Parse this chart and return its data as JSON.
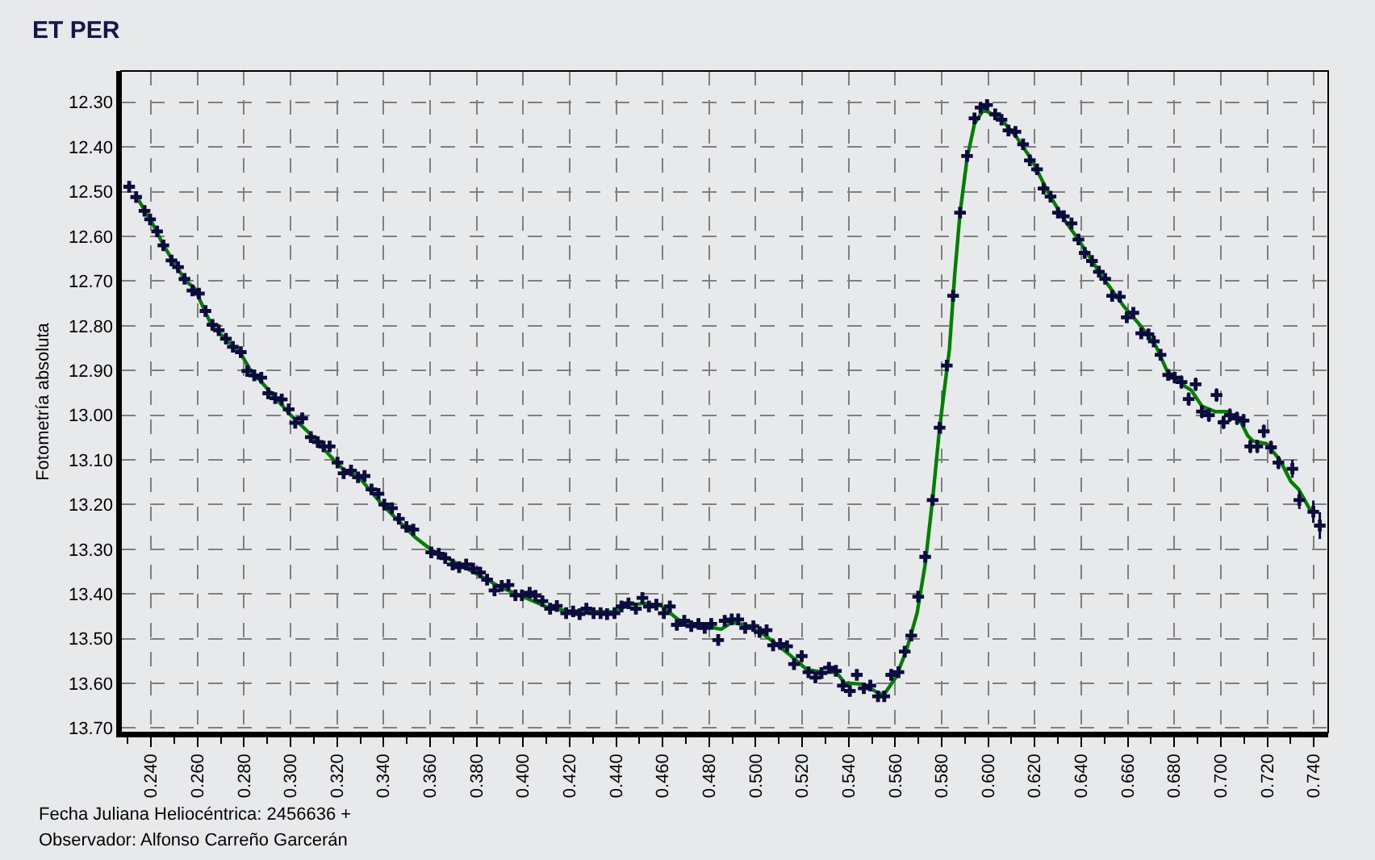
{
  "chart_data": {
    "type": "scatter",
    "title": "ET PER",
    "xlabel": "Fecha Juliana Heliocéntrica: 2456636 +",
    "ylabel": "Fotometría absoluta",
    "annotations": [
      "Observador: Alfonso Carreño Garcerán"
    ],
    "xlim": [
      0.2271,
      0.7462
    ],
    "ylim": [
      13.71,
      12.23
    ],
    "xticks": [
      {
        "value": 0.23,
        "label": null
      },
      {
        "value": 0.24,
        "label": "0.240"
      },
      {
        "value": 0.25,
        "label": null
      },
      {
        "value": 0.26,
        "label": "0.260"
      },
      {
        "value": 0.27,
        "label": null
      },
      {
        "value": 0.28,
        "label": "0.280"
      },
      {
        "value": 0.29,
        "label": null
      },
      {
        "value": 0.3,
        "label": "0.300"
      },
      {
        "value": 0.31,
        "label": null
      },
      {
        "value": 0.32,
        "label": "0.320"
      },
      {
        "value": 0.33,
        "label": null
      },
      {
        "value": 0.34,
        "label": "0.340"
      },
      {
        "value": 0.35,
        "label": null
      },
      {
        "value": 0.36,
        "label": "0.360"
      },
      {
        "value": 0.37,
        "label": null
      },
      {
        "value": 0.38,
        "label": "0.380"
      },
      {
        "value": 0.39,
        "label": null
      },
      {
        "value": 0.4,
        "label": "0.400"
      },
      {
        "value": 0.41,
        "label": null
      },
      {
        "value": 0.42,
        "label": "0.420"
      },
      {
        "value": 0.43,
        "label": null
      },
      {
        "value": 0.44,
        "label": "0.440"
      },
      {
        "value": 0.45,
        "label": null
      },
      {
        "value": 0.46,
        "label": "0.460"
      },
      {
        "value": 0.47,
        "label": null
      },
      {
        "value": 0.48,
        "label": "0.480"
      },
      {
        "value": 0.49,
        "label": null
      },
      {
        "value": 0.5,
        "label": "0.500"
      },
      {
        "value": 0.51,
        "label": null
      },
      {
        "value": 0.52,
        "label": "0.520"
      },
      {
        "value": 0.53,
        "label": null
      },
      {
        "value": 0.54,
        "label": "0.540"
      },
      {
        "value": 0.55,
        "label": null
      },
      {
        "value": 0.56,
        "label": "0.560"
      },
      {
        "value": 0.57,
        "label": null
      },
      {
        "value": 0.58,
        "label": "0.580"
      },
      {
        "value": 0.59,
        "label": null
      },
      {
        "value": 0.6,
        "label": "0.600"
      },
      {
        "value": 0.61,
        "label": null
      },
      {
        "value": 0.62,
        "label": "0.620"
      },
      {
        "value": 0.63,
        "label": null
      },
      {
        "value": 0.64,
        "label": "0.640"
      },
      {
        "value": 0.65,
        "label": null
      },
      {
        "value": 0.66,
        "label": "0.660"
      },
      {
        "value": 0.67,
        "label": null
      },
      {
        "value": 0.68,
        "label": "0.680"
      },
      {
        "value": 0.69,
        "label": null
      },
      {
        "value": 0.7,
        "label": "0.700"
      },
      {
        "value": 0.71,
        "label": null
      },
      {
        "value": 0.72,
        "label": "0.720"
      },
      {
        "value": 0.73,
        "label": null
      },
      {
        "value": 0.74,
        "label": "0.740"
      }
    ],
    "yticks": [
      {
        "value": 12.3,
        "label": "12.30"
      },
      {
        "value": 12.4,
        "label": "12.40"
      },
      {
        "value": 12.5,
        "label": "12.50"
      },
      {
        "value": 12.6,
        "label": "12.60"
      },
      {
        "value": 12.7,
        "label": "12.70"
      },
      {
        "value": 12.8,
        "label": "12.80"
      },
      {
        "value": 12.9,
        "label": "12.90"
      },
      {
        "value": 13.0,
        "label": "13.00"
      },
      {
        "value": 13.1,
        "label": "13.10"
      },
      {
        "value": 13.2,
        "label": "13.20"
      },
      {
        "value": 13.3,
        "label": "13.30"
      },
      {
        "value": 13.4,
        "label": "13.40"
      },
      {
        "value": 13.5,
        "label": "13.50"
      },
      {
        "value": 13.6,
        "label": "13.60"
      },
      {
        "value": 13.7,
        "label": "13.70"
      }
    ],
    "grid": true,
    "series": [
      {
        "type": "line",
        "color": "#008000",
        "x": [
          0.2343,
          0.24,
          0.245,
          0.25,
          0.255,
          0.2586,
          0.2661,
          0.2786,
          0.2828,
          0.2863,
          0.3001,
          0.308,
          0.3186,
          0.3232,
          0.329,
          0.3394,
          0.3533,
          0.3602,
          0.3833,
          0.3903,
          0.3972,
          0.4111,
          0.4203,
          0.4388,
          0.4458,
          0.4527,
          0.4596,
          0.4666,
          0.4735,
          0.4781,
          0.4851,
          0.4897,
          0.4955,
          0.5035,
          0.5082,
          0.5139,
          0.522,
          0.5289,
          0.5347,
          0.5382,
          0.5463,
          0.5532,
          0.5555,
          0.5602,
          0.5648,
          0.5694,
          0.5729,
          0.5763,
          0.5791,
          0.5833,
          0.5856,
          0.5879,
          0.5909,
          0.5941,
          0.5978,
          0.6002,
          0.6053,
          0.6122,
          0.6191,
          0.6261,
          0.633,
          0.6388,
          0.6491,
          0.6584,
          0.6654,
          0.6723,
          0.6769,
          0.685,
          0.6873,
          0.6919,
          0.6977,
          0.7023,
          0.7081,
          0.7116,
          0.7139,
          0.7197,
          0.7254,
          0.7301,
          0.7335,
          0.7389
        ],
        "values": [
          12.516,
          12.565,
          12.616,
          12.66,
          12.7,
          12.715,
          12.8,
          12.862,
          12.9,
          12.919,
          13.0,
          13.04,
          13.1,
          13.124,
          13.136,
          13.2,
          13.272,
          13.3,
          13.364,
          13.385,
          13.4,
          13.431,
          13.439,
          13.44,
          13.424,
          13.421,
          13.427,
          13.457,
          13.472,
          13.472,
          13.479,
          13.464,
          13.469,
          13.491,
          13.509,
          13.533,
          13.569,
          13.575,
          13.575,
          13.599,
          13.602,
          13.623,
          13.623,
          13.587,
          13.527,
          13.443,
          13.334,
          13.178,
          13.028,
          12.853,
          12.685,
          12.547,
          12.426,
          12.348,
          12.318,
          12.322,
          12.336,
          12.378,
          12.432,
          12.505,
          12.565,
          12.607,
          12.691,
          12.757,
          12.799,
          12.847,
          12.901,
          12.937,
          12.944,
          12.98,
          12.992,
          12.992,
          13.01,
          13.046,
          13.058,
          13.064,
          13.1,
          13.148,
          13.166,
          13.216
        ]
      },
      {
        "color": "#0b0b40",
        "marker": "cross",
        "x": [
          0.2306,
          0.2336,
          0.2372,
          0.2396,
          0.2426,
          0.2453,
          0.2488,
          0.2516,
          0.2544,
          0.2578,
          0.2606,
          0.2634,
          0.2664,
          0.2691,
          0.2722,
          0.2752,
          0.2786,
          0.2814,
          0.2844,
          0.2874,
          0.2904,
          0.2934,
          0.2962,
          0.2992,
          0.302,
          0.305,
          0.3087,
          0.3117,
          0.3142,
          0.3168,
          0.3202,
          0.3228,
          0.326,
          0.329,
          0.3318,
          0.3348,
          0.3378,
          0.3403,
          0.3436,
          0.3466,
          0.3498,
          0.3528,
          0.3605,
          0.3637,
          0.3665,
          0.3697,
          0.3725,
          0.3755,
          0.3785,
          0.3815,
          0.3845,
          0.3877,
          0.3908,
          0.3937,
          0.3967,
          0.3995,
          0.4028,
          0.4053,
          0.4083,
          0.4116,
          0.4145,
          0.4185,
          0.4215,
          0.4243,
          0.4272,
          0.4303,
          0.4333,
          0.4361,
          0.4393,
          0.4423,
          0.4453,
          0.4485,
          0.4513,
          0.4541,
          0.4573,
          0.4605,
          0.4631,
          0.4661,
          0.4693,
          0.4723,
          0.4754,
          0.4781,
          0.4809,
          0.4839,
          0.4867,
          0.4897,
          0.4925,
          0.4955,
          0.499,
          0.5017,
          0.5047,
          0.5075,
          0.5105,
          0.5135,
          0.5165,
          0.5198,
          0.5227,
          0.5257,
          0.5283,
          0.5315,
          0.5345,
          0.5375,
          0.5405,
          0.5435,
          0.5465,
          0.5493,
          0.5526,
          0.5553,
          0.5583,
          0.5614,
          0.5641,
          0.5669,
          0.5699,
          0.5729,
          0.5761,
          0.5791,
          0.5822,
          0.5849,
          0.5879,
          0.5909,
          0.5941,
          0.5967,
          0.5995,
          0.603,
          0.6057,
          0.6087,
          0.6117,
          0.615,
          0.6179,
          0.621,
          0.6238,
          0.6268,
          0.63,
          0.6325,
          0.6358,
          0.6388,
          0.6415,
          0.6446,
          0.6476,
          0.6503,
          0.6533,
          0.6566,
          0.6596,
          0.6624,
          0.6658,
          0.6689,
          0.6712,
          0.6741,
          0.6774,
          0.6802,
          0.6831,
          0.6862,
          0.6892,
          0.6919,
          0.6949,
          0.6982,
          0.7012,
          0.7039,
          0.707,
          0.7098,
          0.7127,
          0.7157,
          0.7185,
          0.7216,
          0.7248,
          0.7308,
          0.7338,
          0.7398,
          0.7426
        ],
        "values": [
          12.489,
          12.512,
          12.543,
          12.562,
          12.589,
          12.62,
          12.654,
          12.669,
          12.695,
          12.721,
          12.728,
          12.767,
          12.798,
          12.81,
          12.829,
          12.847,
          12.859,
          12.901,
          12.911,
          12.916,
          12.951,
          12.962,
          12.965,
          12.987,
          13.017,
          13.007,
          13.049,
          13.06,
          13.07,
          13.07,
          13.106,
          13.13,
          13.124,
          13.139,
          13.136,
          13.166,
          13.176,
          13.2,
          13.208,
          13.232,
          13.25,
          13.256,
          13.307,
          13.31,
          13.32,
          13.334,
          13.34,
          13.334,
          13.343,
          13.352,
          13.368,
          13.392,
          13.382,
          13.38,
          13.403,
          13.403,
          13.397,
          13.404,
          13.416,
          13.433,
          13.427,
          13.443,
          13.439,
          13.445,
          13.433,
          13.443,
          13.443,
          13.445,
          13.443,
          13.428,
          13.421,
          13.433,
          13.409,
          13.428,
          13.424,
          13.443,
          13.428,
          13.469,
          13.46,
          13.472,
          13.467,
          13.476,
          13.467,
          13.503,
          13.46,
          13.457,
          13.457,
          13.476,
          13.472,
          13.485,
          13.481,
          13.515,
          13.512,
          13.517,
          13.557,
          13.539,
          13.575,
          13.587,
          13.577,
          13.565,
          13.572,
          13.605,
          13.617,
          13.581,
          13.611,
          13.605,
          13.629,
          13.629,
          13.581,
          13.575,
          13.529,
          13.493,
          13.406,
          13.317,
          13.19,
          13.028,
          12.889,
          12.733,
          12.547,
          12.42,
          12.336,
          12.312,
          12.306,
          12.327,
          12.339,
          12.363,
          12.366,
          12.394,
          12.43,
          12.45,
          12.493,
          12.511,
          12.547,
          12.555,
          12.571,
          12.607,
          12.637,
          12.655,
          12.679,
          12.695,
          12.733,
          12.735,
          12.781,
          12.771,
          12.817,
          12.819,
          12.835,
          12.865,
          12.91,
          12.916,
          12.926,
          12.964,
          12.931,
          12.992,
          13.0,
          12.955,
          13.016,
          13.0,
          13.007,
          13.012,
          13.07,
          13.07,
          13.036,
          13.072,
          13.106,
          13.12,
          13.19,
          13.216,
          13.247
        ],
        "errors": [
          0.008,
          0.008,
          0.008,
          0.008,
          0.008,
          0.008,
          0.008,
          0.008,
          0.008,
          0.008,
          0.008,
          0.008,
          0.008,
          0.008,
          0.008,
          0.008,
          0.008,
          0.008,
          0.008,
          0.008,
          0.008,
          0.008,
          0.008,
          0.008,
          0.008,
          0.008,
          0.008,
          0.008,
          0.008,
          0.008,
          0.008,
          0.008,
          0.008,
          0.008,
          0.008,
          0.008,
          0.008,
          0.008,
          0.008,
          0.008,
          0.008,
          0.008,
          0.012,
          0.012,
          0.012,
          0.012,
          0.012,
          0.012,
          0.012,
          0.012,
          0.012,
          0.012,
          0.012,
          0.012,
          0.012,
          0.012,
          0.012,
          0.012,
          0.012,
          0.012,
          0.012,
          0.012,
          0.012,
          0.012,
          0.012,
          0.012,
          0.012,
          0.012,
          0.012,
          0.012,
          0.012,
          0.012,
          0.012,
          0.012,
          0.012,
          0.012,
          0.012,
          0.012,
          0.012,
          0.012,
          0.012,
          0.012,
          0.012,
          0.012,
          0.012,
          0.012,
          0.012,
          0.012,
          0.012,
          0.012,
          0.012,
          0.012,
          0.012,
          0.012,
          0.012,
          0.012,
          0.012,
          0.012,
          0.012,
          0.012,
          0.012,
          0.012,
          0.012,
          0.012,
          0.012,
          0.012,
          0.012,
          0.012,
          0.012,
          0.012,
          0.012,
          0.012,
          0.01,
          0.01,
          0.01,
          0.01,
          0.01,
          0.01,
          0.01,
          0.01,
          0.01,
          0.01,
          0.01,
          0.01,
          0.01,
          0.01,
          0.01,
          0.01,
          0.01,
          0.01,
          0.01,
          0.01,
          0.01,
          0.01,
          0.01,
          0.01,
          0.01,
          0.01,
          0.01,
          0.01,
          0.01,
          0.01,
          0.01,
          0.01,
          0.01,
          0.01,
          0.01,
          0.01,
          0.01,
          0.01,
          0.015,
          0.015,
          0.015,
          0.015,
          0.015,
          0.015,
          0.015,
          0.015,
          0.015,
          0.015,
          0.015,
          0.015,
          0.015,
          0.015,
          0.015,
          0.02,
          0.02,
          0.025,
          0.03
        ]
      }
    ]
  }
}
